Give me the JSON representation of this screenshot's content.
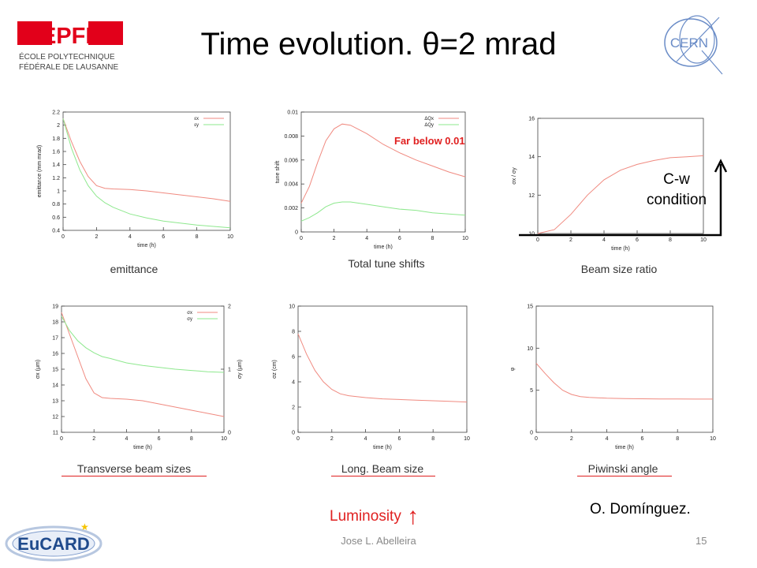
{
  "slide": {
    "title": "Time evolution. θ=2 mrad",
    "footer_author": "Jose L. Abelleira",
    "page_number": "15"
  },
  "logos": {
    "epfl": {
      "mark": "EPFL",
      "line1": "ÉCOLE POLYTECHNIQUE",
      "line2": "FÉDÉRALE DE LAUSANNE",
      "color": "#e2001a"
    },
    "cern": {
      "mark": "CERN",
      "color": "#6a8cc7"
    },
    "eucard": {
      "mark": "EuCARD",
      "color": "#1f4a8c"
    }
  },
  "annotations": {
    "far_below": "Far below 0.01",
    "cw_line1": "C-w",
    "cw_line2": "condition",
    "luminosity": "Luminosity",
    "luminosity_arrow": "↑",
    "author": "O. Domínguez."
  },
  "colors": {
    "series_red": "#f08a80",
    "series_green": "#8ee88e",
    "annotation_red": "#e02020"
  },
  "chart_data": [
    {
      "type": "line",
      "caption": "emittance",
      "xlabel": "time (h)",
      "ylabel": "emittance (mm mrad)",
      "xlim": [
        0,
        10
      ],
      "ylim": [
        0.4,
        2.2
      ],
      "xticks": [
        "0",
        "2",
        "4",
        "6",
        "8",
        "10"
      ],
      "yticks": [
        "0.4",
        "0.6",
        "0.8",
        "1",
        "1.2",
        "1.4",
        "1.6",
        "1.8",
        "2",
        "2.2"
      ],
      "legend": [
        "εx",
        "εy"
      ],
      "series": [
        {
          "name": "εx",
          "color": "#f08a80",
          "x": [
            0,
            0.5,
            1,
            1.5,
            2,
            2.5,
            3,
            4,
            5,
            6,
            7,
            8,
            9,
            10
          ],
          "y": [
            2.1,
            1.75,
            1.45,
            1.22,
            1.08,
            1.04,
            1.03,
            1.02,
            1.0,
            0.97,
            0.94,
            0.91,
            0.88,
            0.84
          ]
        },
        {
          "name": "εy",
          "color": "#8ee88e",
          "x": [
            0,
            0.5,
            1,
            1.5,
            2,
            2.5,
            3,
            4,
            5,
            6,
            7,
            8,
            9,
            10
          ],
          "y": [
            2.1,
            1.65,
            1.32,
            1.08,
            0.92,
            0.82,
            0.75,
            0.65,
            0.59,
            0.54,
            0.51,
            0.48,
            0.46,
            0.44
          ]
        }
      ]
    },
    {
      "type": "line",
      "caption": "Total tune shifts",
      "xlabel": "time (h)",
      "ylabel": "tune shift",
      "xlim": [
        0,
        10
      ],
      "ylim": [
        0,
        0.01
      ],
      "xticks": [
        "0",
        "2",
        "4",
        "6",
        "8",
        "10"
      ],
      "yticks": [
        "0",
        "0.002",
        "0.004",
        "0.006",
        "0.008",
        "0.01"
      ],
      "legend": [
        "ΔQx",
        "ΔQy"
      ],
      "series": [
        {
          "name": "ΔQx",
          "color": "#f08a80",
          "x": [
            0,
            0.5,
            1,
            1.5,
            2,
            2.5,
            3,
            4,
            5,
            6,
            7,
            8,
            9,
            10
          ],
          "y": [
            0.0024,
            0.0038,
            0.0058,
            0.0076,
            0.0086,
            0.009,
            0.0089,
            0.0082,
            0.0073,
            0.0066,
            0.006,
            0.0055,
            0.005,
            0.0046
          ]
        },
        {
          "name": "ΔQy",
          "color": "#8ee88e",
          "x": [
            0,
            0.5,
            1,
            1.5,
            2,
            2.5,
            3,
            4,
            5,
            6,
            7,
            8,
            9,
            10
          ],
          "y": [
            0.0009,
            0.0012,
            0.0016,
            0.0021,
            0.0024,
            0.0025,
            0.0025,
            0.0023,
            0.0021,
            0.0019,
            0.0018,
            0.0016,
            0.0015,
            0.0014
          ]
        }
      ]
    },
    {
      "type": "line",
      "caption": "Beam size ratio",
      "xlabel": "time (h)",
      "ylabel": "σx / σy",
      "xlim": [
        0,
        10
      ],
      "ylim": [
        10,
        16
      ],
      "xticks": [
        "0",
        "2",
        "4",
        "6",
        "8",
        "10"
      ],
      "yticks": [
        "10",
        "12",
        "14",
        "16"
      ],
      "legend": [],
      "series": [
        {
          "name": "",
          "color": "#f08a80",
          "x": [
            0,
            1,
            2,
            3,
            4,
            5,
            6,
            7,
            8,
            9,
            10
          ],
          "y": [
            10.0,
            10.2,
            11.0,
            12.0,
            12.8,
            13.3,
            13.6,
            13.8,
            13.95,
            14.0,
            14.05
          ]
        }
      ]
    },
    {
      "type": "line",
      "caption": "Transverse beam sizes",
      "xlabel": "time (h)",
      "ylabel": "σx (μm)",
      "y2label": "σy (μm)",
      "xlim": [
        0,
        10
      ],
      "ylim": [
        11,
        19
      ],
      "y2lim": [
        0,
        2
      ],
      "xticks": [
        "0",
        "2",
        "4",
        "6",
        "8",
        "10"
      ],
      "yticks": [
        "11",
        "12",
        "13",
        "14",
        "15",
        "16",
        "17",
        "18",
        "19"
      ],
      "y2ticks": [
        "0",
        "1",
        "2"
      ],
      "legend": [
        "σx",
        "σy"
      ],
      "series": [
        {
          "name": "σx",
          "color": "#f08a80",
          "axis": "left",
          "x": [
            0,
            0.5,
            1,
            1.5,
            2,
            2.5,
            3,
            4,
            5,
            6,
            7,
            8,
            9,
            10
          ],
          "y": [
            18.6,
            17.2,
            15.8,
            14.4,
            13.5,
            13.2,
            13.15,
            13.1,
            13.0,
            12.8,
            12.6,
            12.4,
            12.2,
            12.0
          ]
        },
        {
          "name": "σy",
          "color": "#8ee88e",
          "axis": "right",
          "x": [
            0,
            0.5,
            1,
            1.5,
            2,
            2.5,
            3,
            4,
            5,
            6,
            7,
            8,
            9,
            10
          ],
          "y": [
            1.84,
            1.61,
            1.45,
            1.34,
            1.26,
            1.2,
            1.17,
            1.1,
            1.06,
            1.03,
            1.0,
            0.98,
            0.96,
            0.95
          ]
        }
      ]
    },
    {
      "type": "line",
      "caption": "Long. Beam size",
      "xlabel": "time (h)",
      "ylabel": "σz (cm)",
      "xlim": [
        0,
        10
      ],
      "ylim": [
        0,
        10
      ],
      "xticks": [
        "0",
        "2",
        "4",
        "6",
        "8",
        "10"
      ],
      "yticks": [
        "0",
        "2",
        "4",
        "6",
        "8",
        "10"
      ],
      "legend": [],
      "series": [
        {
          "name": "",
          "color": "#f08a80",
          "x": [
            0,
            0.5,
            1,
            1.5,
            2,
            2.5,
            3,
            4,
            5,
            6,
            7,
            8,
            9,
            10
          ],
          "y": [
            7.8,
            6.2,
            4.9,
            4.0,
            3.4,
            3.05,
            2.9,
            2.75,
            2.65,
            2.6,
            2.55,
            2.5,
            2.45,
            2.4
          ]
        }
      ]
    },
    {
      "type": "line",
      "caption": "Piwinski angle",
      "xlabel": "time (h)",
      "ylabel": "φ",
      "xlim": [
        0,
        10
      ],
      "ylim": [
        0,
        15
      ],
      "xticks": [
        "0",
        "2",
        "4",
        "6",
        "8",
        "10"
      ],
      "yticks": [
        "0",
        "5",
        "10",
        "15"
      ],
      "legend": [],
      "series": [
        {
          "name": "",
          "color": "#f08a80",
          "x": [
            0,
            0.5,
            1,
            1.5,
            2,
            2.5,
            3,
            4,
            5,
            6,
            7,
            8,
            9,
            10
          ],
          "y": [
            8.2,
            7.0,
            5.9,
            5.0,
            4.5,
            4.25,
            4.15,
            4.05,
            4.0,
            3.98,
            3.97,
            3.96,
            3.95,
            3.95
          ]
        }
      ]
    }
  ]
}
